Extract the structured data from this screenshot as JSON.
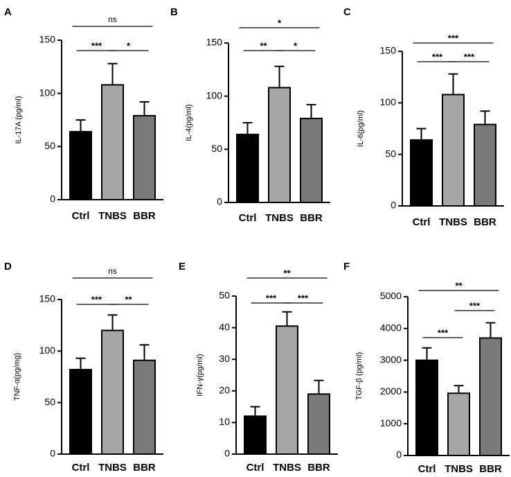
{
  "chart_data": [
    {
      "panel": "A",
      "type": "bar",
      "ylabel": "IL-17A (pg/ml)",
      "categories": [
        "Ctrl",
        "TNBS",
        "BBR"
      ],
      "values": [
        64,
        108,
        79
      ],
      "errors": [
        11,
        20,
        13
      ],
      "colors": [
        "#000000",
        "#a6a6a6",
        "#7a7a7a"
      ],
      "ylim": [
        0,
        150
      ],
      "yticks": [
        0,
        50,
        100,
        150
      ],
      "significance": [
        {
          "from": 0,
          "to": 2,
          "label": "ns"
        },
        {
          "from": 0,
          "to": 1,
          "label": "***"
        },
        {
          "from": 1,
          "to": 2,
          "label": "*"
        }
      ]
    },
    {
      "panel": "B",
      "type": "bar",
      "ylabel": "IL-4(pg/ml)",
      "categories": [
        "Ctrl",
        "TNBS",
        "BBR"
      ],
      "values": [
        64,
        108,
        79
      ],
      "errors": [
        11,
        20,
        13
      ],
      "colors": [
        "#000000",
        "#a6a6a6",
        "#7a7a7a"
      ],
      "ylim": [
        0,
        150
      ],
      "yticks": [
        0,
        50,
        100,
        150
      ],
      "significance": [
        {
          "from": 0,
          "to": 2,
          "label": "*"
        },
        {
          "from": 0,
          "to": 1,
          "label": "**"
        },
        {
          "from": 1,
          "to": 2,
          "label": "*"
        }
      ]
    },
    {
      "panel": "C",
      "type": "bar",
      "ylabel": "IL-6(pg/ml)",
      "categories": [
        "Ctrl",
        "TNBS",
        "BBR"
      ],
      "values": [
        64,
        108,
        79
      ],
      "errors": [
        11,
        20,
        13
      ],
      "colors": [
        "#000000",
        "#a6a6a6",
        "#7a7a7a"
      ],
      "ylim": [
        0,
        150
      ],
      "yticks": [
        0,
        50,
        100,
        150
      ],
      "significance": [
        {
          "from": 0,
          "to": 2,
          "label": "***"
        },
        {
          "from": 0,
          "to": 1,
          "label": "***"
        },
        {
          "from": 1,
          "to": 2,
          "label": "***"
        }
      ]
    },
    {
      "panel": "D",
      "type": "bar",
      "ylabel": "TNF-α(pg/mg)",
      "categories": [
        "Ctrl",
        "TNBS",
        "BBR"
      ],
      "values": [
        82,
        120,
        91
      ],
      "errors": [
        11,
        15,
        15
      ],
      "colors": [
        "#000000",
        "#a6a6a6",
        "#7a7a7a"
      ],
      "ylim": [
        0,
        150
      ],
      "yticks": [
        0,
        50,
        100,
        150
      ],
      "significance": [
        {
          "from": 0,
          "to": 2,
          "label": "ns"
        },
        {
          "from": 0,
          "to": 1,
          "label": "***"
        },
        {
          "from": 1,
          "to": 2,
          "label": "**"
        }
      ]
    },
    {
      "panel": "E",
      "type": "bar",
      "ylabel": "IFN-γ(pg/ml)",
      "categories": [
        "Ctrl",
        "TNBS",
        "BBR"
      ],
      "values": [
        12,
        40.5,
        19
      ],
      "errors": [
        3,
        4.5,
        4.3
      ],
      "colors": [
        "#000000",
        "#a6a6a6",
        "#7a7a7a"
      ],
      "ylim": [
        0,
        50
      ],
      "yticks": [
        0,
        10,
        20,
        30,
        40,
        50
      ],
      "significance": [
        {
          "from": 0,
          "to": 2,
          "label": "**"
        },
        {
          "from": 0,
          "to": 1,
          "label": "***"
        },
        {
          "from": 1,
          "to": 2,
          "label": "***"
        }
      ]
    },
    {
      "panel": "F",
      "type": "bar",
      "ylabel": "TGF-β (pg/ml)",
      "categories": [
        "Ctrl",
        "TNBS",
        "BBR"
      ],
      "values": [
        3000,
        1960,
        3700
      ],
      "errors": [
        390,
        240,
        480
      ],
      "colors": [
        "#000000",
        "#a6a6a6",
        "#7a7a7a"
      ],
      "ylim": [
        0,
        5000
      ],
      "yticks": [
        0,
        1000,
        2000,
        3000,
        4000,
        5000
      ],
      "significance": [
        {
          "from": 0,
          "to": 2,
          "label": "**"
        },
        {
          "from": 0,
          "to": 1,
          "label": "***"
        },
        {
          "from": 1,
          "to": 2,
          "label": "***"
        }
      ]
    }
  ]
}
